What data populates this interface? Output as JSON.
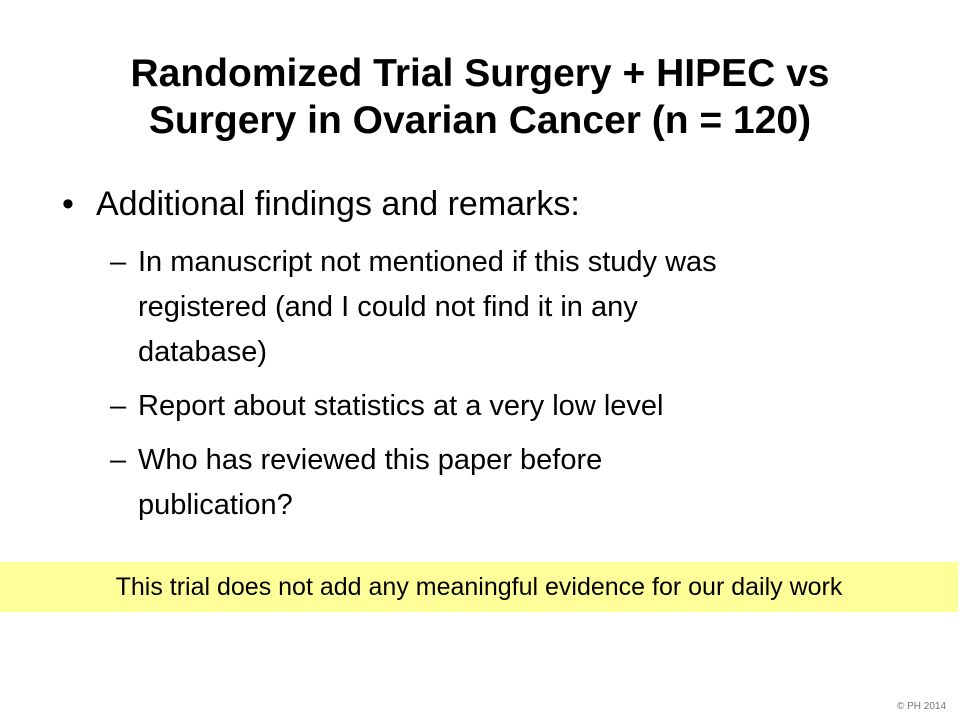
{
  "slide": {
    "title_lines": [
      "Randomized Trial Surgery + HIPEC vs",
      "Surgery in Ovarian Cancer (n = 120)"
    ],
    "bullet": {
      "marker": "•",
      "text": "Additional findings and remarks:"
    },
    "sub_marker": "–",
    "sub_bullets": [
      {
        "lines": [
          "In manuscript not mentioned if this study was",
          "registered (and I could not find it in any",
          "database)"
        ]
      },
      {
        "lines": [
          "Report about statistics at a very low level"
        ]
      },
      {
        "lines": [
          "Who has reviewed this paper before",
          "publication?"
        ]
      }
    ],
    "highlight_text": "This trial does not add any meaningful evidence for our daily work",
    "copyright": "© PH 2014",
    "colors": {
      "highlight_background": "#ffff99",
      "text": "#000000",
      "copyright": "#777777"
    }
  }
}
